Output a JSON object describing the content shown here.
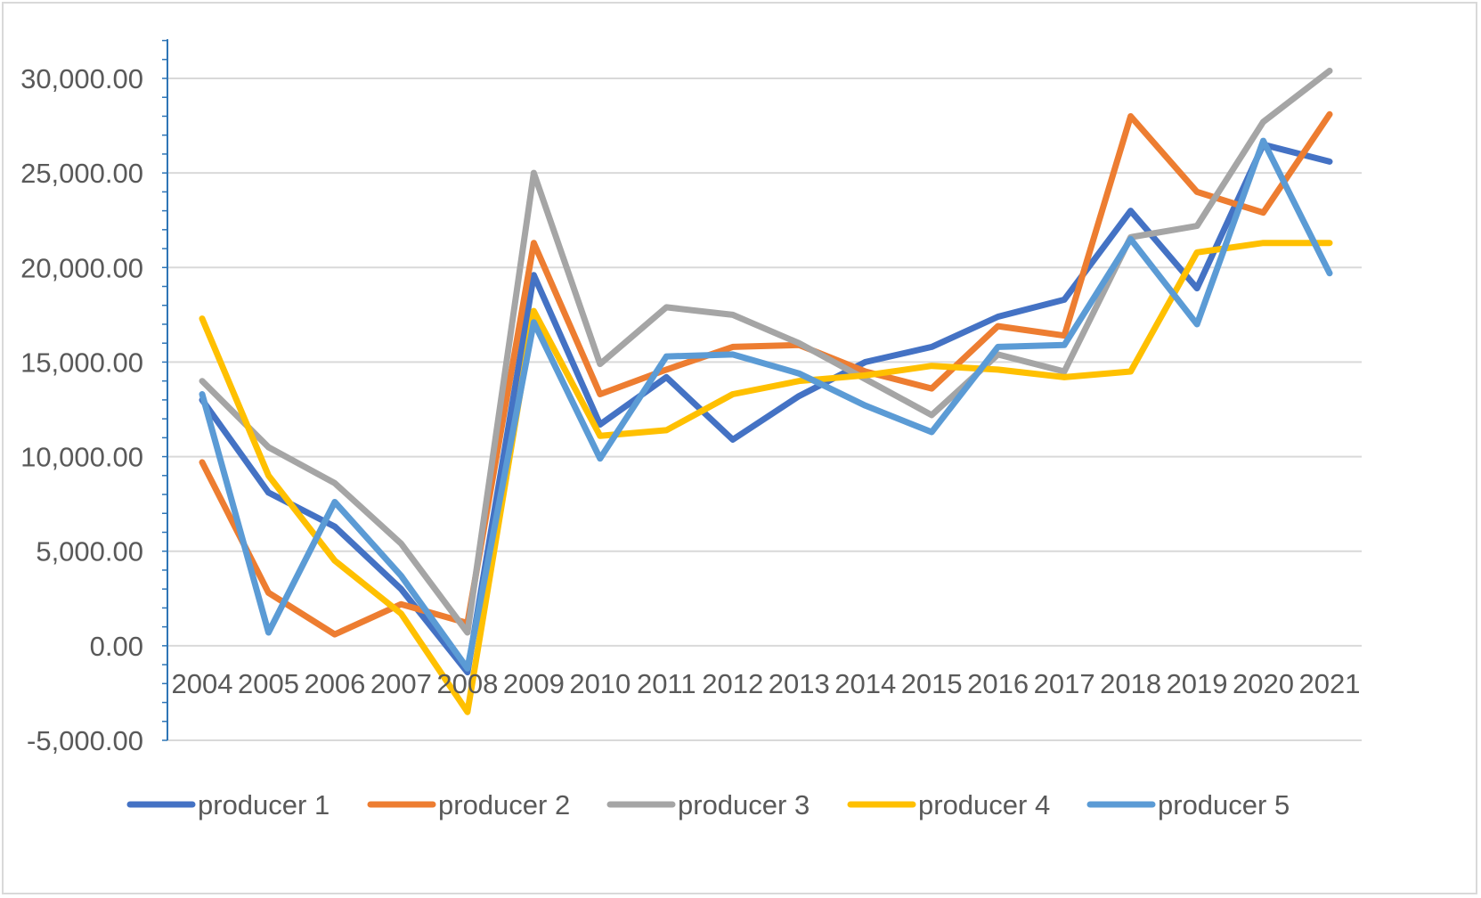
{
  "chart_data": {
    "type": "line",
    "title": "",
    "xlabel": "",
    "ylabel": "",
    "categories": [
      "2004",
      "2005",
      "2006",
      "2007",
      "2008",
      "2009",
      "2010",
      "2011",
      "2012",
      "2013",
      "2014",
      "2015",
      "2016",
      "2017",
      "2018",
      "2019",
      "2020",
      "2021"
    ],
    "ylim": [
      -5000,
      30000
    ],
    "yticks": [
      -5000,
      0,
      5000,
      10000,
      15000,
      20000,
      25000,
      30000
    ],
    "ytick_labels": [
      "-5,000.00",
      "0.00",
      "5,000.00",
      "10,000.00",
      "15,000.00",
      "20,000.00",
      "25,000.00",
      "30,000.00"
    ],
    "grid": true,
    "legend_position": "bottom",
    "series": [
      {
        "name": "producer 1",
        "color": "#4472c4",
        "values": [
          13000,
          8100,
          6300,
          3000,
          -1400,
          19600,
          11700,
          14200,
          10900,
          13200,
          15000,
          15800,
          17400,
          18300,
          23000,
          18900,
          26500,
          25600
        ]
      },
      {
        "name": "producer 2",
        "color": "#ed7d31",
        "values": [
          9700,
          2800,
          600,
          2200,
          1200,
          21300,
          13300,
          14600,
          15800,
          15900,
          14500,
          13600,
          16900,
          16400,
          28000,
          24000,
          22900,
          28100
        ]
      },
      {
        "name": "producer 3",
        "color": "#a5a5a5",
        "values": [
          14000,
          10500,
          8600,
          5400,
          700,
          25000,
          14900,
          17900,
          17500,
          16000,
          14100,
          12200,
          15400,
          14500,
          21600,
          22200,
          27700,
          30400
        ]
      },
      {
        "name": "producer 4",
        "color": "#ffc000",
        "values": [
          17300,
          9000,
          4500,
          1700,
          -3500,
          17700,
          11100,
          11400,
          13300,
          14000,
          14300,
          14800,
          14600,
          14200,
          14500,
          20800,
          21300,
          21300
        ]
      },
      {
        "name": "producer 5",
        "color": "#5b9bd5",
        "values": [
          13300,
          700,
          7600,
          3700,
          -1200,
          17100,
          9900,
          15300,
          15400,
          14400,
          12700,
          11300,
          15800,
          15900,
          21500,
          17000,
          26700,
          19700
        ]
      }
    ]
  }
}
